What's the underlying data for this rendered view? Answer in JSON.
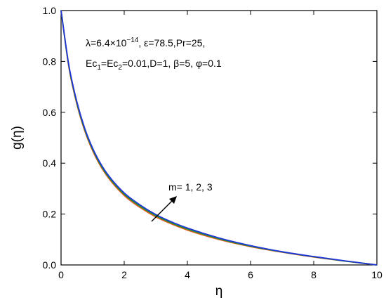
{
  "chart_data": {
    "type": "line",
    "xlabel": "η",
    "ylabel": "g(η)",
    "xlim": [
      0,
      10
    ],
    "ylim": [
      0,
      1.0
    ],
    "xticks": [
      0,
      2,
      4,
      6,
      8,
      10
    ],
    "yticks": [
      0.0,
      0.2,
      0.4,
      0.6,
      0.8,
      1.0
    ],
    "xtick_labels": [
      "0",
      "2",
      "4",
      "6",
      "8",
      "10"
    ],
    "ytick_labels": [
      "0.0",
      "0.2",
      "0.4",
      "0.6",
      "0.8",
      "1.0"
    ],
    "grid": false,
    "annotations": {
      "params_line1": {
        "lambda_label": "λ=6.4×10",
        "lambda_exp": "−14",
        "rest": ", ε=78.5,Pr=25,"
      },
      "params_line2": {
        "ec_a": "Ec",
        "ec_a_sub": "1",
        "ec_eq": "=Ec",
        "ec_b_sub": "2",
        "rest": "=0.01,D=1, β=5, φ=0.1"
      },
      "arrow_label": "m= 1, 2, 3"
    },
    "series": [
      {
        "color": "#e8541e",
        "x": [
          0,
          0.25,
          0.5,
          0.75,
          1,
          1.25,
          1.5,
          2,
          2.5,
          3,
          3.5,
          4,
          5,
          6,
          7,
          8,
          9,
          10
        ],
        "values": [
          1.0,
          0.775,
          0.632,
          0.527,
          0.449,
          0.389,
          0.342,
          0.273,
          0.226,
          0.189,
          0.161,
          0.137,
          0.1,
          0.072,
          0.05,
          0.031,
          0.015,
          0.0
        ]
      },
      {
        "color": "#1d9a2a",
        "x": [
          0,
          0.25,
          0.5,
          0.75,
          1,
          1.25,
          1.5,
          2,
          2.5,
          3,
          3.5,
          4,
          5,
          6,
          7,
          8,
          9,
          10
        ],
        "values": [
          1.0,
          0.779,
          0.637,
          0.532,
          0.454,
          0.394,
          0.347,
          0.278,
          0.231,
          0.194,
          0.165,
          0.141,
          0.103,
          0.074,
          0.051,
          0.032,
          0.015,
          0.0
        ]
      },
      {
        "color": "#1f35d6",
        "x": [
          0,
          0.25,
          0.5,
          0.75,
          1,
          1.25,
          1.5,
          2,
          2.5,
          3,
          3.5,
          4,
          5,
          6,
          7,
          8,
          9,
          10
        ],
        "values": [
          1.0,
          0.783,
          0.642,
          0.537,
          0.459,
          0.399,
          0.352,
          0.283,
          0.236,
          0.198,
          0.169,
          0.145,
          0.106,
          0.076,
          0.052,
          0.033,
          0.016,
          0.0
        ]
      }
    ]
  }
}
